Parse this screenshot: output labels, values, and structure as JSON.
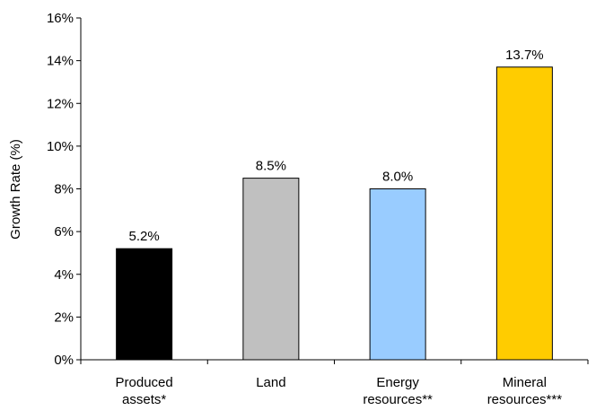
{
  "chart_data": {
    "type": "bar",
    "title": "",
    "xlabel": "",
    "ylabel": "Growth Rate (%)",
    "ylim": [
      0,
      16
    ],
    "y_ticks": [
      "0%",
      "2%",
      "4%",
      "6%",
      "8%",
      "10%",
      "12%",
      "14%",
      "16%"
    ],
    "grid": false,
    "legend": "none",
    "categories": [
      [
        "Produced",
        "assets*"
      ],
      [
        "Land"
      ],
      [
        "Energy",
        "resources**"
      ],
      [
        "Mineral",
        "resources***"
      ]
    ],
    "values": [
      5.2,
      8.5,
      8.0,
      13.7
    ],
    "data_labels": [
      "5.2%",
      "8.5%",
      "8.0%",
      "13.7%"
    ],
    "colors": [
      "#000000",
      "#c0c0c0",
      "#99ccff",
      "#ffcc00"
    ]
  }
}
